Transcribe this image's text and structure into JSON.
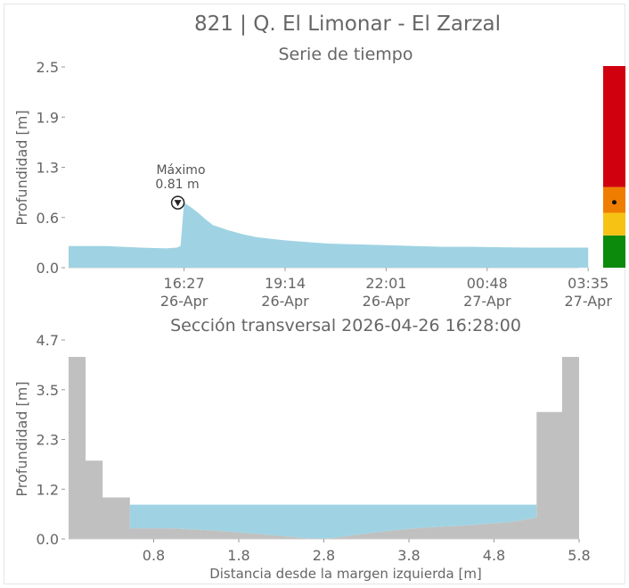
{
  "header": {
    "title": "821 | Q. El Limonar - El Zarzal"
  },
  "chart_data": [
    {
      "type": "area",
      "title": "Serie de tiempo",
      "ylabel": "Profundidad [m]",
      "xlabel": "",
      "ylim": [
        0,
        2.5
      ],
      "xlim_hours": [
        0,
        12.8
      ],
      "y_ticks": [
        "0.0",
        "0.6",
        "1.3",
        "1.9",
        "2.5"
      ],
      "y_tick_values": [
        0.0,
        0.625,
        1.25,
        1.875,
        2.5
      ],
      "x_ticks": [
        {
          "hour": 3.2,
          "time": "16:27",
          "date": "26-Apr"
        },
        {
          "hour": 6.0,
          "time": "19:14",
          "date": "26-Apr"
        },
        {
          "hour": 8.8,
          "time": "22:01",
          "date": "26-Apr"
        },
        {
          "hour": 11.6,
          "time": "00:48",
          "date": "27-Apr"
        },
        {
          "hour": 14.4,
          "time": "03:35",
          "date": "27-Apr"
        }
      ],
      "series": [
        {
          "color": "#9fd3e3",
          "x": [
            0,
            1.0,
            2.0,
            2.7,
            3.0,
            3.1,
            3.2,
            3.4,
            3.6,
            3.8,
            4.0,
            4.4,
            4.8,
            5.2,
            5.6,
            6.0,
            6.6,
            7.2,
            8.0,
            8.8,
            9.6,
            10.4,
            11.2,
            12.0,
            12.8,
            13.6,
            14.4
          ],
          "values": [
            0.27,
            0.27,
            0.25,
            0.24,
            0.25,
            0.27,
            0.81,
            0.75,
            0.68,
            0.6,
            0.53,
            0.47,
            0.42,
            0.38,
            0.36,
            0.34,
            0.32,
            0.3,
            0.29,
            0.28,
            0.27,
            0.26,
            0.26,
            0.255,
            0.25,
            0.25,
            0.25
          ]
        }
      ],
      "annotation": {
        "label": "Máximo",
        "value_text": "0.81 m",
        "hour": 3.2,
        "value": 0.81
      },
      "alert_scale": {
        "colors": [
          "#d0000f",
          "#ef7d00",
          "#f6c315",
          "#0b8a0b"
        ],
        "thresholds": [
          0.0,
          0.4,
          0.68,
          1.0,
          2.5
        ],
        "current_value": 0.81
      }
    },
    {
      "type": "area",
      "title": "Sección transversal 2026-04-26 16:28:00",
      "ylabel": "Profundidad [m]",
      "xlabel": "Distancia desde la margen izquierda [m]",
      "ylim": [
        0,
        4.7
      ],
      "xlim": [
        -0.2,
        5.8
      ],
      "y_ticks": [
        "0.0",
        "1.2",
        "2.3",
        "3.5",
        "4.7"
      ],
      "y_tick_values": [
        0.0,
        1.175,
        2.35,
        3.525,
        4.7
      ],
      "x_ticks": [
        "0.8",
        "1.8",
        "2.8",
        "3.8",
        "4.8",
        "5.8"
      ],
      "x_tick_values": [
        0.8,
        1.8,
        2.8,
        3.8,
        4.8,
        5.8
      ],
      "water_level": 0.81,
      "ground_profile": {
        "color": "#c0c0c0",
        "x": [
          -0.2,
          0.0,
          0.0,
          0.2,
          0.2,
          0.52,
          0.52,
          1.0,
          1.5,
          2.0,
          2.4,
          2.7,
          2.9,
          3.2,
          3.6,
          4.0,
          4.5,
          5.0,
          5.3,
          5.3,
          5.6,
          5.6,
          5.8,
          5.8
        ],
        "values": [
          4.3,
          4.3,
          1.85,
          1.85,
          0.98,
          0.98,
          0.25,
          0.25,
          0.2,
          0.12,
          0.05,
          0.0,
          0.02,
          0.1,
          0.2,
          0.27,
          0.32,
          0.4,
          0.5,
          3.0,
          3.0,
          4.3,
          4.3,
          0.8
        ]
      },
      "water_color": "#9fd3e3"
    }
  ]
}
